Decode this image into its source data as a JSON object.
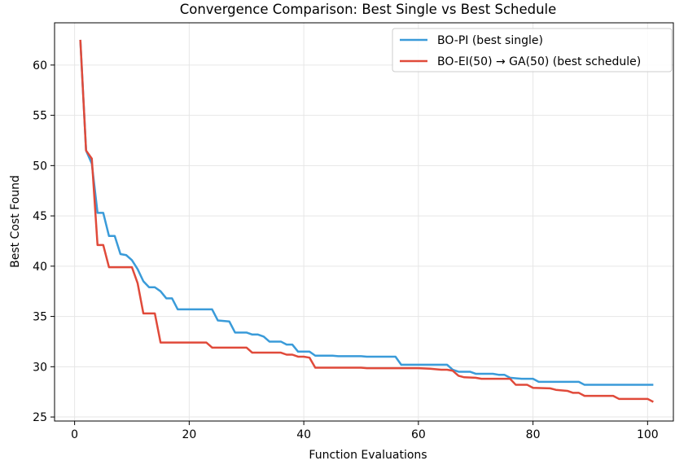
{
  "chart_data": {
    "type": "line",
    "title": "Convergence Comparison: Best Single vs Best Schedule",
    "xlabel": "Function Evaluations",
    "ylabel": "Best Cost Found",
    "xlim": [
      -3.5,
      104.5
    ],
    "ylim": [
      24.6,
      64.2
    ],
    "xticks": [
      0,
      20,
      40,
      60,
      80,
      100
    ],
    "yticks": [
      25,
      30,
      35,
      40,
      45,
      50,
      55,
      60
    ],
    "grid": true,
    "legend_position": "top-right",
    "series": [
      {
        "name": "BO-PI (best single)",
        "color": "#3a9bd9",
        "points": [
          [
            1,
            62.5
          ],
          [
            2,
            51.5
          ],
          [
            3,
            50.2
          ],
          [
            4,
            45.3
          ],
          [
            5,
            45.3
          ],
          [
            6,
            43.0
          ],
          [
            7,
            43.0
          ],
          [
            8,
            41.2
          ],
          [
            9,
            41.1
          ],
          [
            10,
            40.6
          ],
          [
            11,
            39.7
          ],
          [
            12,
            38.5
          ],
          [
            13,
            37.9
          ],
          [
            14,
            37.9
          ],
          [
            15,
            37.5
          ],
          [
            16,
            36.8
          ],
          [
            17,
            36.8
          ],
          [
            18,
            35.7
          ],
          [
            24,
            35.7
          ],
          [
            25,
            34.6
          ],
          [
            27,
            34.5
          ],
          [
            28,
            33.4
          ],
          [
            30,
            33.4
          ],
          [
            31,
            33.2
          ],
          [
            32,
            33.2
          ],
          [
            33,
            33.0
          ],
          [
            34,
            32.5
          ],
          [
            36,
            32.5
          ],
          [
            37,
            32.2
          ],
          [
            38,
            32.2
          ],
          [
            39,
            31.5
          ],
          [
            41,
            31.5
          ],
          [
            42,
            31.1
          ],
          [
            45,
            31.1
          ],
          [
            46,
            31.05
          ],
          [
            50,
            31.05
          ],
          [
            51,
            31.0
          ],
          [
            56,
            31.0
          ],
          [
            57,
            30.2
          ],
          [
            65,
            30.2
          ],
          [
            66,
            29.7
          ],
          [
            67,
            29.5
          ],
          [
            69,
            29.5
          ],
          [
            70,
            29.3
          ],
          [
            73,
            29.3
          ],
          [
            74,
            29.2
          ],
          [
            75,
            29.2
          ],
          [
            76,
            28.9
          ],
          [
            78,
            28.8
          ],
          [
            80,
            28.8
          ],
          [
            81,
            28.5
          ],
          [
            88,
            28.5
          ],
          [
            89,
            28.2
          ],
          [
            101,
            28.2
          ]
        ]
      },
      {
        "name": "BO-EI(50) → GA(50) (best schedule)",
        "color": "#e04a3a",
        "points": [
          [
            1,
            62.5
          ],
          [
            2,
            51.5
          ],
          [
            3,
            50.7
          ],
          [
            4,
            42.1
          ],
          [
            5,
            42.1
          ],
          [
            6,
            39.9
          ],
          [
            10,
            39.9
          ],
          [
            11,
            38.3
          ],
          [
            12,
            35.3
          ],
          [
            14,
            35.3
          ],
          [
            15,
            32.4
          ],
          [
            23,
            32.4
          ],
          [
            24,
            31.9
          ],
          [
            30,
            31.9
          ],
          [
            31,
            31.4
          ],
          [
            36,
            31.4
          ],
          [
            37,
            31.2
          ],
          [
            38,
            31.2
          ],
          [
            39,
            31.0
          ],
          [
            40,
            31.0
          ],
          [
            41,
            30.9
          ],
          [
            42,
            29.9
          ],
          [
            50,
            29.9
          ],
          [
            51,
            29.85
          ],
          [
            60,
            29.85
          ],
          [
            62,
            29.8
          ],
          [
            64,
            29.7
          ],
          [
            65,
            29.7
          ],
          [
            66,
            29.6
          ],
          [
            67,
            29.1
          ],
          [
            68,
            28.95
          ],
          [
            70,
            28.9
          ],
          [
            71,
            28.8
          ],
          [
            76,
            28.8
          ],
          [
            77,
            28.2
          ],
          [
            79,
            28.2
          ],
          [
            80,
            27.9
          ],
          [
            83,
            27.85
          ],
          [
            84,
            27.7
          ],
          [
            86,
            27.6
          ],
          [
            87,
            27.4
          ],
          [
            88,
            27.4
          ],
          [
            89,
            27.1
          ],
          [
            94,
            27.1
          ],
          [
            95,
            26.8
          ],
          [
            100,
            26.8
          ],
          [
            101,
            26.5
          ]
        ]
      }
    ]
  }
}
